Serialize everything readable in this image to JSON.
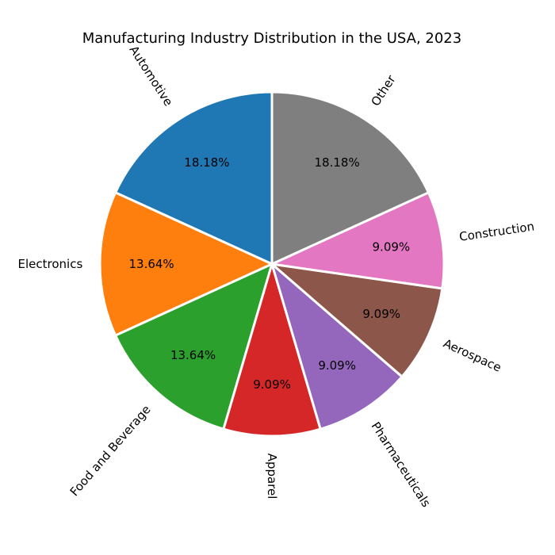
{
  "chart_data": {
    "type": "pie",
    "title": "Manufacturing Industry Distribution in the USA, 2023",
    "categories": [
      "Automotive",
      "Electronics",
      "Food and Beverage",
      "Apparel",
      "Pharmaceuticals",
      "Aerospace",
      "Construction",
      "Other"
    ],
    "values": [
      18.18,
      13.64,
      13.64,
      9.09,
      9.09,
      9.09,
      9.09,
      18.18
    ],
    "value_labels": [
      "18.18%",
      "13.64%",
      "13.64%",
      "9.09%",
      "9.09%",
      "9.09%",
      "9.09%",
      "18.18%"
    ],
    "colors": [
      "#1f77b4",
      "#ff7f0e",
      "#2ca02c",
      "#d62728",
      "#9467bd",
      "#8c564b",
      "#e377c2",
      "#7f7f7f"
    ],
    "start_angle_deg": 90,
    "direction": "counterclockwise",
    "label_rotation": "radial",
    "slice_edge_color": "#ffffff",
    "legend": false
  }
}
